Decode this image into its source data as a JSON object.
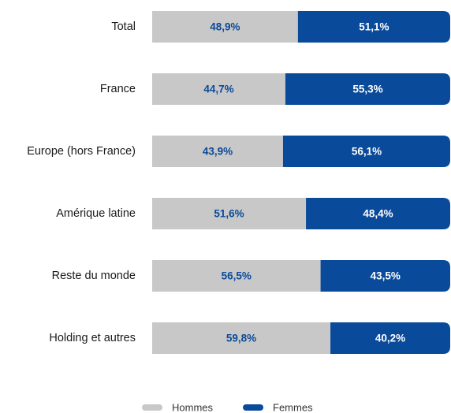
{
  "chart_data": {
    "type": "bar",
    "orientation": "horizontal",
    "stacked": true,
    "categories": [
      "Total",
      "France",
      "Europe (hors France)",
      "Amérique latine",
      "Reste du monde",
      "Holding et autres"
    ],
    "series": [
      {
        "name": "Hommes",
        "color": "#c8c8c8",
        "values": [
          48.9,
          44.7,
          43.9,
          51.6,
          56.5,
          59.8
        ],
        "value_labels": [
          "48,9%",
          "44,7%",
          "43,9%",
          "51,6%",
          "56,5%",
          "59,8%"
        ]
      },
      {
        "name": "Femmes",
        "color": "#0a4a9a",
        "values": [
          51.1,
          55.3,
          56.1,
          48.4,
          43.5,
          40.2
        ],
        "value_labels": [
          "51,1%",
          "55,3%",
          "56,1%",
          "48,4%",
          "43,5%",
          "40,2%"
        ]
      }
    ],
    "legend": "bottom"
  }
}
